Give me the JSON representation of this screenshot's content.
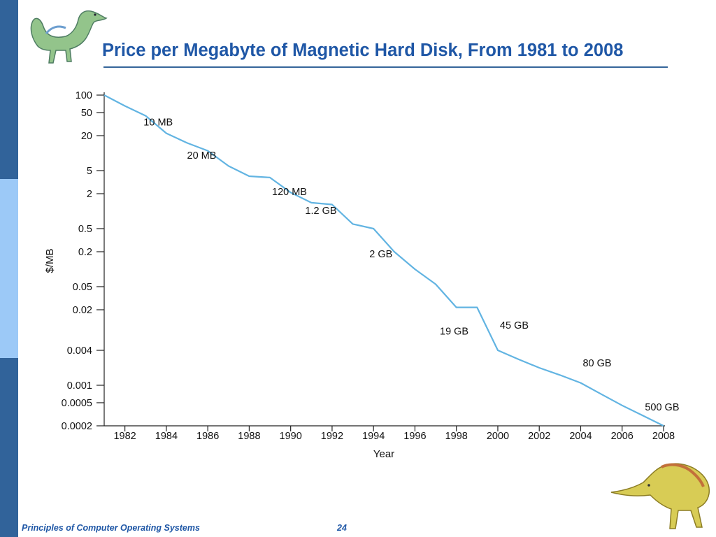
{
  "slide": {
    "title": "Price per Megabyte of Magnetic Hard Disk, From 1981 to 2008",
    "footer_text": "Principles of Computer Operating Systems",
    "page_number": "24"
  },
  "colors": {
    "line": "#62b4e2",
    "title": "#1f57a6",
    "accent_bar": "#31639a",
    "accent_bar_light": "#9cc9f7"
  },
  "chart_data": {
    "type": "line",
    "xlabel": "Year",
    "ylabel": "$/MB",
    "yscale": "log",
    "xlim": [
      1981,
      2008
    ],
    "ylim": [
      0.0002,
      100
    ],
    "xticks": [
      1982,
      1984,
      1986,
      1988,
      1990,
      1992,
      1994,
      1996,
      1998,
      2000,
      2002,
      2004,
      2006,
      2008
    ],
    "yticks": [
      {
        "label": "100",
        "value": 100
      },
      {
        "label": "50",
        "value": 50
      },
      {
        "label": "20",
        "value": 20
      },
      {
        "label": "5",
        "value": 5
      },
      {
        "label": "2",
        "value": 2
      },
      {
        "label": "0.5",
        "value": 0.5
      },
      {
        "label": "0.2",
        "value": 0.2
      },
      {
        "label": "0.05",
        "value": 0.05
      },
      {
        "label": "0.02",
        "value": 0.02
      },
      {
        "label": "0.004",
        "value": 0.004
      },
      {
        "label": "0.001",
        "value": 0.001
      },
      {
        "label": "0.0005",
        "value": 0.0005
      },
      {
        "label": "0.0002",
        "value": 0.0002
      }
    ],
    "grid": false,
    "series": [
      {
        "x": [
          1981,
          1982,
          1983,
          1984,
          1985,
          1986,
          1987,
          1988,
          1989,
          1990,
          1991,
          1992,
          1993,
          1994,
          1995,
          1996,
          1997,
          1998,
          1999,
          2000,
          2001,
          2002,
          2003,
          2004,
          2005,
          2006,
          2007,
          2008
        ],
        "y": [
          100,
          65,
          44,
          22,
          15,
          11,
          6,
          4,
          3.8,
          2.1,
          1.4,
          1.3,
          0.6,
          0.5,
          0.2,
          0.1,
          0.055,
          0.022,
          0.022,
          0.004,
          0.0028,
          0.002,
          0.0015,
          0.0011,
          0.0007,
          0.00045,
          0.0003,
          0.0002
        ]
      }
    ],
    "annotations": [
      {
        "text": "10 MB",
        "x": 1982.9,
        "y": 30
      },
      {
        "text": "20 MB",
        "x": 1985.0,
        "y": 8
      },
      {
        "text": "120 MB",
        "x": 1989.1,
        "y": 1.9
      },
      {
        "text": "1.2 GB",
        "x": 1990.7,
        "y": 0.9
      },
      {
        "text": "2 GB",
        "x": 1993.8,
        "y": 0.16
      },
      {
        "text": "19 GB",
        "x": 1997.2,
        "y": 0.0075
      },
      {
        "text": "45 GB",
        "x": 2000.1,
        "y": 0.0095
      },
      {
        "text": "80 GB",
        "x": 2004.1,
        "y": 0.0021
      },
      {
        "text": "500 GB",
        "x": 2007.1,
        "y": 0.00037
      }
    ]
  }
}
